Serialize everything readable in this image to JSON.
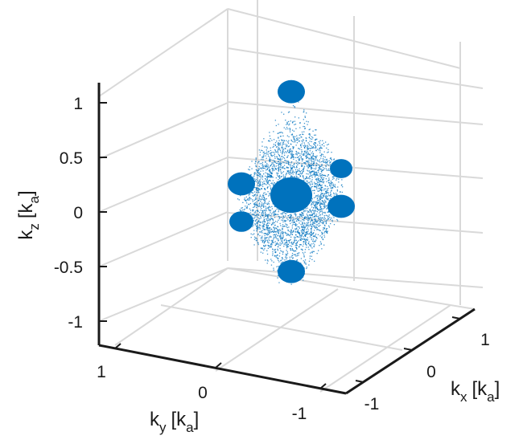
{
  "chart_data": {
    "type": "scatter3d",
    "title": "",
    "grid": true,
    "colors": {
      "points": "#0072BD",
      "grid": "#d9d9d9",
      "axis": "#1a1a1a"
    },
    "axes": {
      "x": {
        "label": "k",
        "subscript": "x",
        "unit": "[k",
        "unit_sub": "a",
        "close": "]",
        "range": [
          -1.4,
          1.4
        ],
        "ticks": [
          1,
          0,
          -1
        ],
        "tick_labels": [
          "1",
          "0",
          "-1"
        ]
      },
      "y": {
        "label": "k",
        "subscript": "y",
        "unit": "[k",
        "unit_sub": "a",
        "close": "]",
        "range": [
          -1.4,
          1.4
        ],
        "ticks": [
          1,
          0,
          -1
        ],
        "tick_labels": [
          "1",
          "0",
          "-1"
        ]
      },
      "z": {
        "label": "k",
        "subscript": "z",
        "unit": "[k",
        "unit_sub": "a",
        "close": "]",
        "range": [
          -1.2,
          1.2
        ],
        "ticks": [
          1,
          0.5,
          0,
          -0.5,
          -1
        ],
        "tick_labels": [
          "1",
          "0.5",
          "0",
          "-0.5",
          "-1"
        ]
      }
    },
    "clusters": [
      {
        "center": [
          0,
          0,
          0
        ],
        "note": "central dense cluster"
      },
      {
        "center": [
          0,
          0,
          1.15
        ]
      },
      {
        "center": [
          0,
          0,
          -0.85
        ]
      },
      {
        "center": [
          1,
          0,
          0
        ]
      },
      {
        "center": [
          -1,
          0,
          0
        ]
      },
      {
        "center": [
          0,
          1,
          0
        ]
      },
      {
        "center": [
          0,
          -1,
          0
        ]
      }
    ]
  }
}
